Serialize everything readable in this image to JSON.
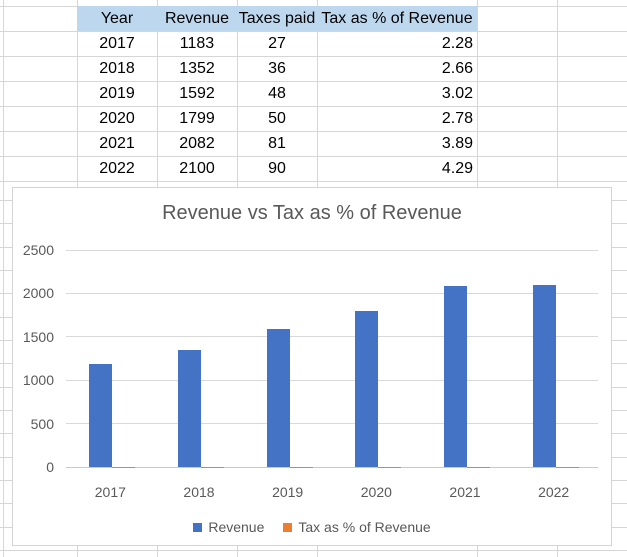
{
  "table": {
    "headers": [
      "Year",
      "Revenue",
      "Taxes paid",
      "Tax as % of Revenue"
    ],
    "rows": [
      [
        "2017",
        "1183",
        "27",
        "2.28"
      ],
      [
        "2018",
        "1352",
        "36",
        "2.66"
      ],
      [
        "2019",
        "1592",
        "48",
        "3.02"
      ],
      [
        "2020",
        "1799",
        "50",
        "2.78"
      ],
      [
        "2021",
        "2082",
        "81",
        "3.89"
      ],
      [
        "2022",
        "2100",
        "90",
        "4.29"
      ]
    ],
    "header_fill_color": "#BDD7EE"
  },
  "chart_data": {
    "type": "bar",
    "title": "Revenue vs Tax as % of Revenue",
    "categories": [
      "2017",
      "2018",
      "2019",
      "2020",
      "2021",
      "2022"
    ],
    "series": [
      {
        "name": "Revenue",
        "color": "#4472C4",
        "values": [
          1183,
          1352,
          1592,
          1799,
          2082,
          2100
        ]
      },
      {
        "name": "Tax as % of Revenue",
        "color": "#ED7D31",
        "values": [
          2.28,
          2.66,
          3.02,
          2.78,
          3.89,
          4.29
        ]
      }
    ],
    "xlabel": "",
    "ylabel": "",
    "ylim": [
      0,
      2500
    ],
    "yticks": [
      0,
      500,
      1000,
      1500,
      2000,
      2500
    ],
    "grid": true,
    "legend_position": "bottom",
    "text_color": "#595959"
  }
}
